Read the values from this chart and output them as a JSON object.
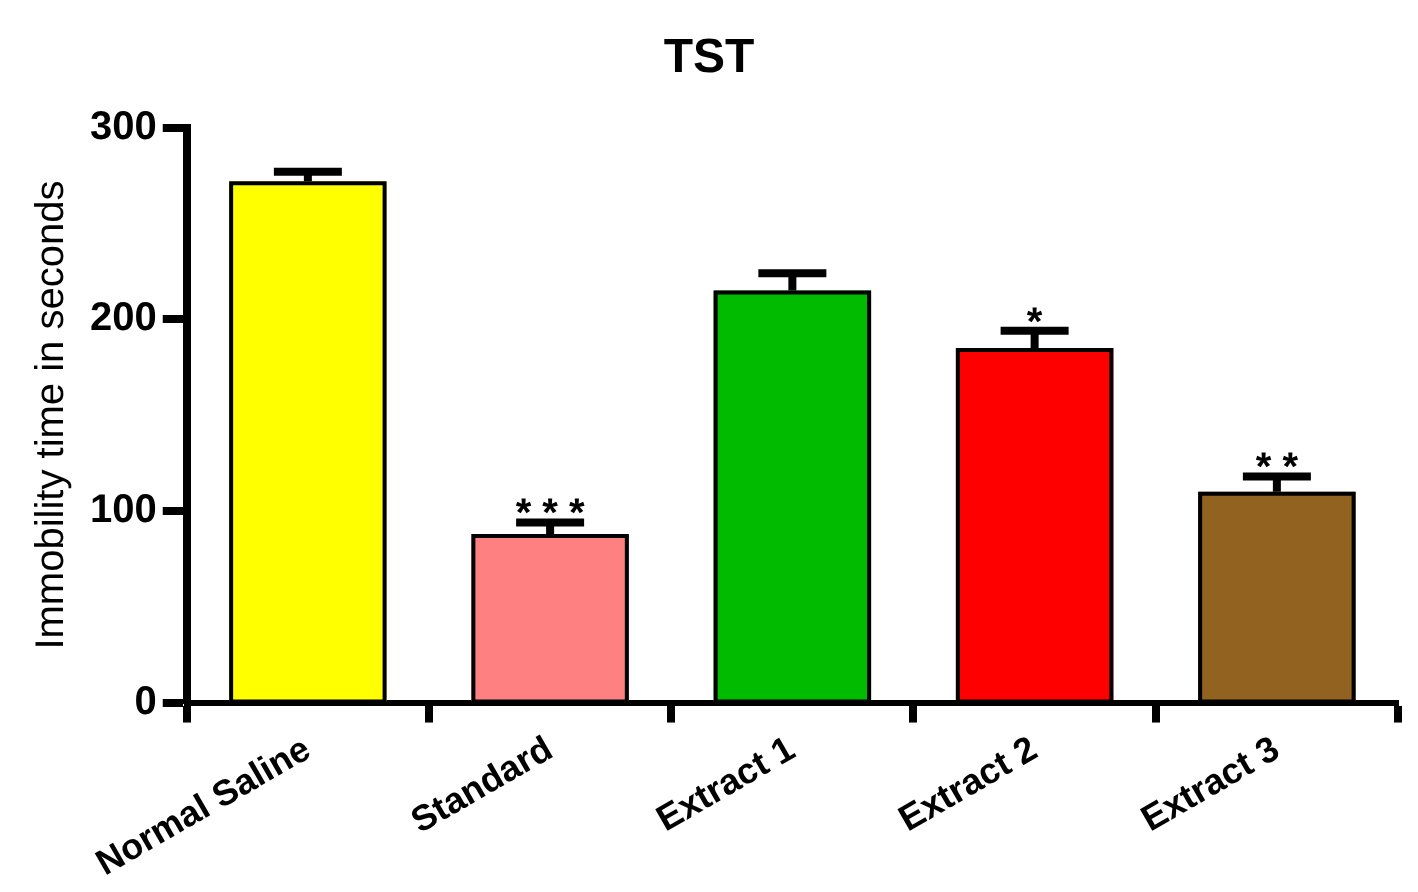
{
  "chart_data": {
    "type": "bar",
    "title": "TST",
    "ylabel": "Immobility time in seconds",
    "categories": [
      "Normal Saline",
      "Standard",
      "Extract 1",
      "Extract 2",
      "Extract 3"
    ],
    "values": [
      272,
      88,
      215,
      185,
      110
    ],
    "errors": [
      5,
      6,
      9,
      9,
      8
    ],
    "colors": [
      "#ffff00",
      "#ff8080",
      "#00bb00",
      "#ff0000",
      "#926320"
    ],
    "ylim": [
      0,
      300
    ],
    "yticks": [
      0,
      100,
      200,
      300
    ],
    "grid": false,
    "legend": false,
    "annotations": [
      {
        "text": "* * *",
        "x": "Standard",
        "y": 94
      },
      {
        "text": "*",
        "x": "Extract 2",
        "y": 194
      },
      {
        "text": "* *",
        "x": "Extract 3",
        "y": 118
      }
    ]
  }
}
